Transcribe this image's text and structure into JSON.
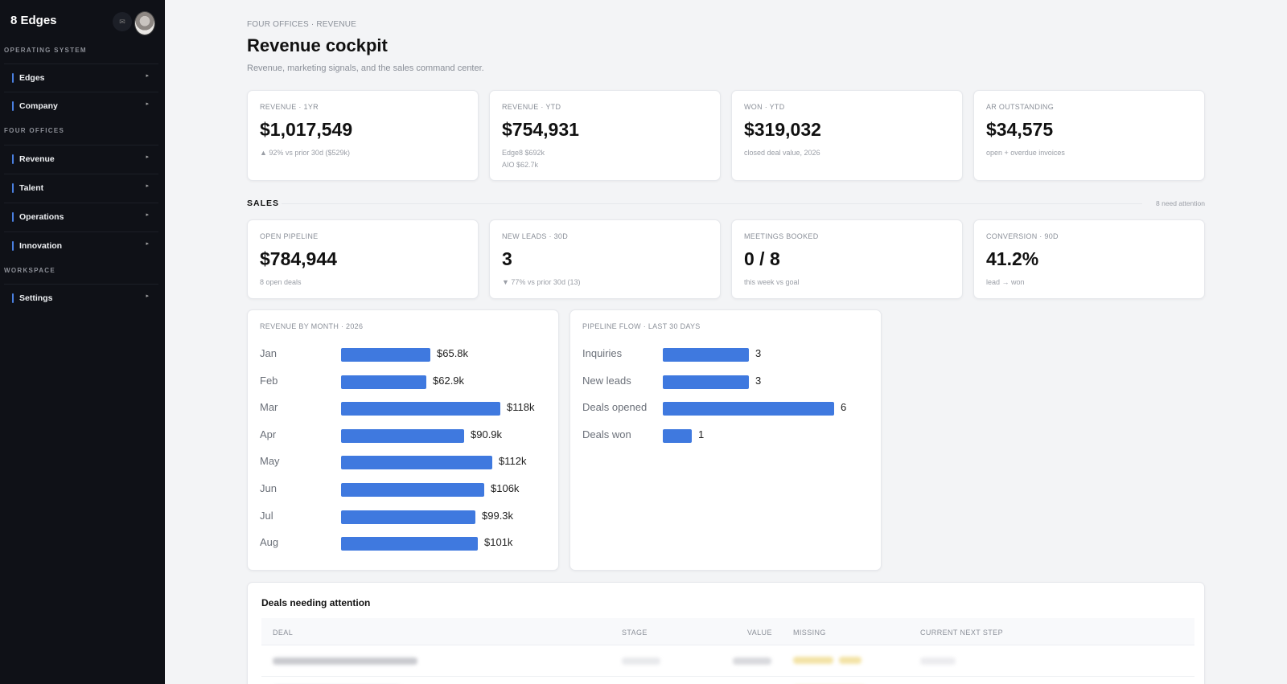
{
  "sidebar": {
    "brand": "8 Edges",
    "mail_icon_glyph": "✉",
    "sections": [
      {
        "label": "OPERATING SYSTEM",
        "items": [
          {
            "label": "Edges"
          },
          {
            "label": "Company"
          }
        ]
      },
      {
        "label": "FOUR OFFICES",
        "items": [
          {
            "label": "Revenue"
          },
          {
            "label": "Talent"
          },
          {
            "label": "Operations"
          },
          {
            "label": "Innovation"
          }
        ]
      },
      {
        "label": "WORKSPACE",
        "items": [
          {
            "label": "Settings"
          }
        ]
      }
    ],
    "chevron_glyph": "▸",
    "accent": "#4a7fe0"
  },
  "header": {
    "breadcrumb": "FOUR OFFICES · REVENUE",
    "title": "Revenue cockpit",
    "subtitle": "Revenue, marketing signals, and the sales command center."
  },
  "kpis": [
    {
      "label": "REVENUE · 1YR",
      "value": "$1,017,549",
      "sub": [
        "▲ 92% vs prior 30d ($529k)"
      ]
    },
    {
      "label": "REVENUE · YTD",
      "value": "$754,931",
      "sub": [
        "Edge8 $692k",
        "AIO $62.7k"
      ]
    },
    {
      "label": "WON · YTD",
      "value": "$319,032",
      "sub": [
        "closed deal value, 2026"
      ]
    },
    {
      "label": "AR OUTSTANDING",
      "value": "$34,575",
      "sub": [
        "open + overdue invoices"
      ]
    }
  ],
  "sales": {
    "heading": "SALES",
    "note": "8 need attention",
    "kpis": [
      {
        "label": "OPEN PIPELINE",
        "value": "$784,944",
        "sub": "8 open deals"
      },
      {
        "label": "NEW LEADS · 30D",
        "value": "3",
        "sub": "▼ 77% vs prior 30d (13)"
      },
      {
        "label": "MEETINGS BOOKED",
        "value": "0 / 8",
        "sub": "this week vs goal"
      },
      {
        "label": "CONVERSION · 90D",
        "value": "41.2%",
        "sub": "lead → won"
      }
    ]
  },
  "chart_data": [
    {
      "type": "bar",
      "orientation": "horizontal",
      "title": "REVENUE BY MONTH · 2026",
      "categories": [
        "Jan",
        "Feb",
        "Mar",
        "Apr",
        "May",
        "Jun",
        "Jul",
        "Aug"
      ],
      "values": [
        65.8,
        62.9,
        118,
        90.9,
        112,
        106,
        99.3,
        101
      ],
      "value_labels": [
        "$65.8k",
        "$62.9k",
        "$118k",
        "$90.9k",
        "$112k",
        "$106k",
        "$99.3k",
        "$101k"
      ],
      "unit": "k$",
      "color": "#3f79df"
    },
    {
      "type": "bar",
      "orientation": "horizontal",
      "title": "PIPELINE FLOW · LAST 30 DAYS",
      "categories": [
        "Inquiries",
        "New leads",
        "Deals opened",
        "Deals won"
      ],
      "values": [
        3,
        3,
        6,
        1
      ],
      "value_labels": [
        "3",
        "3",
        "6",
        "1"
      ],
      "color": "#3f79df"
    }
  ],
  "deals": {
    "title": "Deals needing attention",
    "columns": [
      "DEAL",
      "STAGE",
      "VALUE",
      "MISSING",
      "CURRENT NEXT STEP"
    ]
  }
}
